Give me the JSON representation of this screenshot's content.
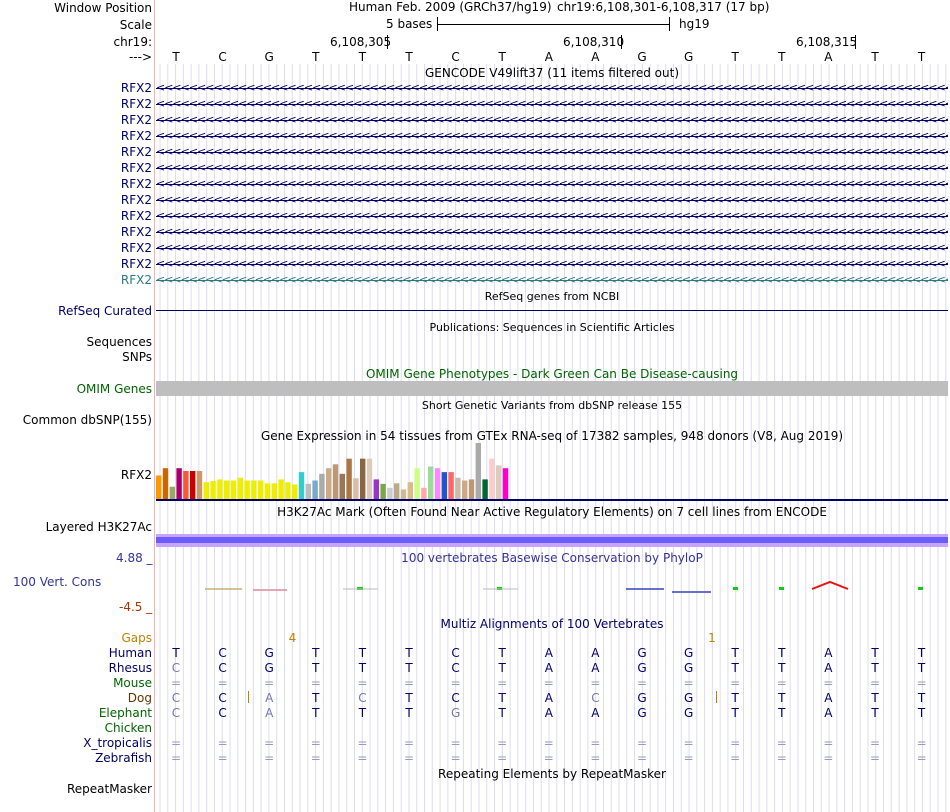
{
  "header": {
    "window_position_label": "Window Position",
    "assembly_text": "Human Feb. 2009 (GRCh37/hg19)",
    "position_text": "chr19:6,108,301-6,108,317 (17 bp)",
    "scale_label": "Scale",
    "scale_text": "5 bases",
    "scale_db": "hg19",
    "chrom_label": "chr19:",
    "coords": [
      "6,108,305",
      "6,108,310",
      "6,108,315"
    ],
    "strand_label": "--->",
    "bases": [
      "T",
      "C",
      "G",
      "T",
      "T",
      "T",
      "C",
      "T",
      "A",
      "A",
      "G",
      "G",
      "T",
      "T",
      "A",
      "T",
      "T"
    ]
  },
  "gencode": {
    "title": "GENCODE V49lift37 (11 items filtered out)",
    "labels": [
      "RFX2",
      "RFX2",
      "RFX2",
      "RFX2",
      "RFX2",
      "RFX2",
      "RFX2",
      "RFX2",
      "RFX2",
      "RFX2",
      "RFX2",
      "RFX2",
      "RFX2"
    ],
    "arrow_row": "<<<<<<<<<<<<<<<<<<<<<<<<<<<<<<<<<<<<<<<<<<<<<<<<<<<<<<<<<<<<<<<<<<<<<<<<<<<<<<<<<<<<<<<<<<<<<<<<<<<<<<<<<<<<<<<<<<<<<<<<<<<<<<<<<<<<<<<<<<<<<<<<<<<<<<<<<<<<<<<<<<<<<<<<<<<<<<<<<<",
    "colors": {
      "gene": "#000066",
      "last": "#2a7a84"
    }
  },
  "refseq": {
    "title": "RefSeq genes from NCBI",
    "label": "RefSeq Curated"
  },
  "publications": {
    "title": "Publications: Sequences in Scientific Articles",
    "label1": "Sequences",
    "label2": "SNPs"
  },
  "omim": {
    "title": "OMIM Gene Phenotypes - Dark Green Can Be Disease-causing",
    "label": "OMIM Genes",
    "bar_color": "#bebebe"
  },
  "dbsnp": {
    "title": "Short Genetic Variants from dbSNP release 155",
    "label": "Common dbSNP(155)"
  },
  "gtex": {
    "title": "Gene Expression in 54 tissues from GTEx RNA-seq of 17382 samples, 948 donors (V8, Aug 2019)",
    "label": "RFX2",
    "bars": [
      {
        "value": 0.42,
        "color": "#ff9900"
      },
      {
        "value": 0.55,
        "color": "#cc6600"
      },
      {
        "value": 0.22,
        "color": "#99aa66"
      },
      {
        "value": 0.55,
        "color": "#aa0066"
      },
      {
        "value": 0.5,
        "color": "#ff5533"
      },
      {
        "value": 0.5,
        "color": "#cc0000"
      },
      {
        "value": 0.5,
        "color": "#cc9966"
      },
      {
        "value": 0.3,
        "color": "#eeee00"
      },
      {
        "value": 0.32,
        "color": "#eeee00"
      },
      {
        "value": 0.35,
        "color": "#eeee00"
      },
      {
        "value": 0.33,
        "color": "#eeee00"
      },
      {
        "value": 0.33,
        "color": "#eeee00"
      },
      {
        "value": 0.38,
        "color": "#eeee00"
      },
      {
        "value": 0.33,
        "color": "#eeee00"
      },
      {
        "value": 0.33,
        "color": "#eeee00"
      },
      {
        "value": 0.33,
        "color": "#eeee00"
      },
      {
        "value": 0.28,
        "color": "#eeee00"
      },
      {
        "value": 0.28,
        "color": "#eeee00"
      },
      {
        "value": 0.35,
        "color": "#eeee00"
      },
      {
        "value": 0.3,
        "color": "#eeee00"
      },
      {
        "value": 0.26,
        "color": "#eeee00"
      },
      {
        "value": 0.48,
        "color": "#33cccc"
      },
      {
        "value": 0.27,
        "color": "#bbbbbb"
      },
      {
        "value": 0.33,
        "color": "#77aacc"
      },
      {
        "value": 0.45,
        "color": "#aaaaaa"
      },
      {
        "value": 0.55,
        "color": "#ccaa88"
      },
      {
        "value": 0.62,
        "color": "#bb9977"
      },
      {
        "value": 0.45,
        "color": "#997755"
      },
      {
        "value": 0.72,
        "color": "#aa7744"
      },
      {
        "value": 0.37,
        "color": "#ddbbaa"
      },
      {
        "value": 0.72,
        "color": "#886644"
      },
      {
        "value": 0.72,
        "color": "#ddccbb"
      },
      {
        "value": 0.35,
        "color": "#9933cc"
      },
      {
        "value": 0.27,
        "color": "#77aa44"
      },
      {
        "value": 0.2,
        "color": "#cccccc"
      },
      {
        "value": 0.28,
        "color": "#bbaa88"
      },
      {
        "value": 0.17,
        "color": "#ccbb99"
      },
      {
        "value": 0.3,
        "color": "#ddbb88"
      },
      {
        "value": 0.55,
        "color": "#ccff88"
      },
      {
        "value": 0.2,
        "color": "#ffaaaa"
      },
      {
        "value": 0.58,
        "color": "#99dd99"
      },
      {
        "value": 0.55,
        "color": "#ff88ff"
      },
      {
        "value": 0.48,
        "color": "#2255cc"
      },
      {
        "value": 0.48,
        "color": "#ff6666"
      },
      {
        "value": 0.38,
        "color": "#ccbbaa"
      },
      {
        "value": 0.33,
        "color": "#ccaa88"
      },
      {
        "value": 0.35,
        "color": "#bb9977"
      },
      {
        "value": 1.0,
        "color": "#aaaaaa"
      },
      {
        "value": 0.35,
        "color": "#006633"
      },
      {
        "value": 0.72,
        "color": "#ffcccc"
      },
      {
        "value": 0.6,
        "color": "#ddccbb"
      },
      {
        "value": 0.55,
        "color": "#ff00cc"
      }
    ]
  },
  "h3k27ac": {
    "title": "H3K27Ac Mark (Often Found Near Active Regulatory Elements) on 7 cell lines from ENCODE",
    "label": "Layered H3K27Ac"
  },
  "phylop": {
    "title": "100 vertebrates Basewise Conservation by PhyloP",
    "label": "100 Vert. Cons",
    "max": "4.88 _",
    "min": "-4.5 _"
  },
  "multiz": {
    "title": "Multiz Alignments of 100 Vertebrates",
    "gaps_label": "Gaps",
    "gap_counts": [
      {
        "text": "4",
        "pos": 2.5
      },
      {
        "text": "1",
        "pos": 11.5
      }
    ],
    "species": [
      {
        "name": "Human",
        "bases": [
          "T",
          "C",
          "G",
          "T",
          "T",
          "T",
          "C",
          "T",
          "A",
          "A",
          "G",
          "G",
          "T",
          "T",
          "A",
          "T",
          "T"
        ]
      },
      {
        "name": "Rhesus",
        "bases": [
          "C",
          "C",
          "G",
          "T",
          "T",
          "T",
          "C",
          "T",
          "A",
          "A",
          "G",
          "G",
          "T",
          "T",
          "A",
          "T",
          "T"
        ]
      },
      {
        "name": "Mouse",
        "bases": [
          "=",
          "=",
          "=",
          "=",
          "=",
          "=",
          "=",
          "=",
          "=",
          "=",
          "=",
          "=",
          "=",
          "=",
          "=",
          "=",
          "="
        ]
      },
      {
        "name": "Dog",
        "bases": [
          "C",
          "C",
          "A",
          "T",
          "C",
          "T",
          "C",
          "T",
          "A",
          "C",
          "G",
          "G",
          "T",
          "T",
          "A",
          "T",
          "T"
        ]
      },
      {
        "name": "Elephant",
        "bases": [
          "C",
          "C",
          "A",
          "T",
          "T",
          "T",
          "G",
          "T",
          "A",
          "A",
          "G",
          "G",
          "T",
          "T",
          "A",
          "T",
          "T"
        ]
      },
      {
        "name": "Chicken",
        "bases": [
          "",
          "",
          "",
          "",
          "",
          "",
          "",
          "",
          "",
          "",
          "",
          "",
          "",
          "",
          "",
          "",
          ""
        ]
      },
      {
        "name": "X_tropicalis",
        "bases": [
          "=",
          "=",
          "=",
          "=",
          "=",
          "=",
          "=",
          "=",
          "=",
          "=",
          "=",
          "=",
          "=",
          "=",
          "=",
          "=",
          "="
        ]
      },
      {
        "name": "Zebrafish",
        "bases": [
          "=",
          "=",
          "=",
          "=",
          "=",
          "=",
          "=",
          "=",
          "=",
          "=",
          "=",
          "=",
          "=",
          "=",
          "=",
          "=",
          "="
        ]
      }
    ]
  },
  "repeatmasker": {
    "title": "Repeating Elements by RepeatMasker",
    "label": "RepeatMasker"
  }
}
